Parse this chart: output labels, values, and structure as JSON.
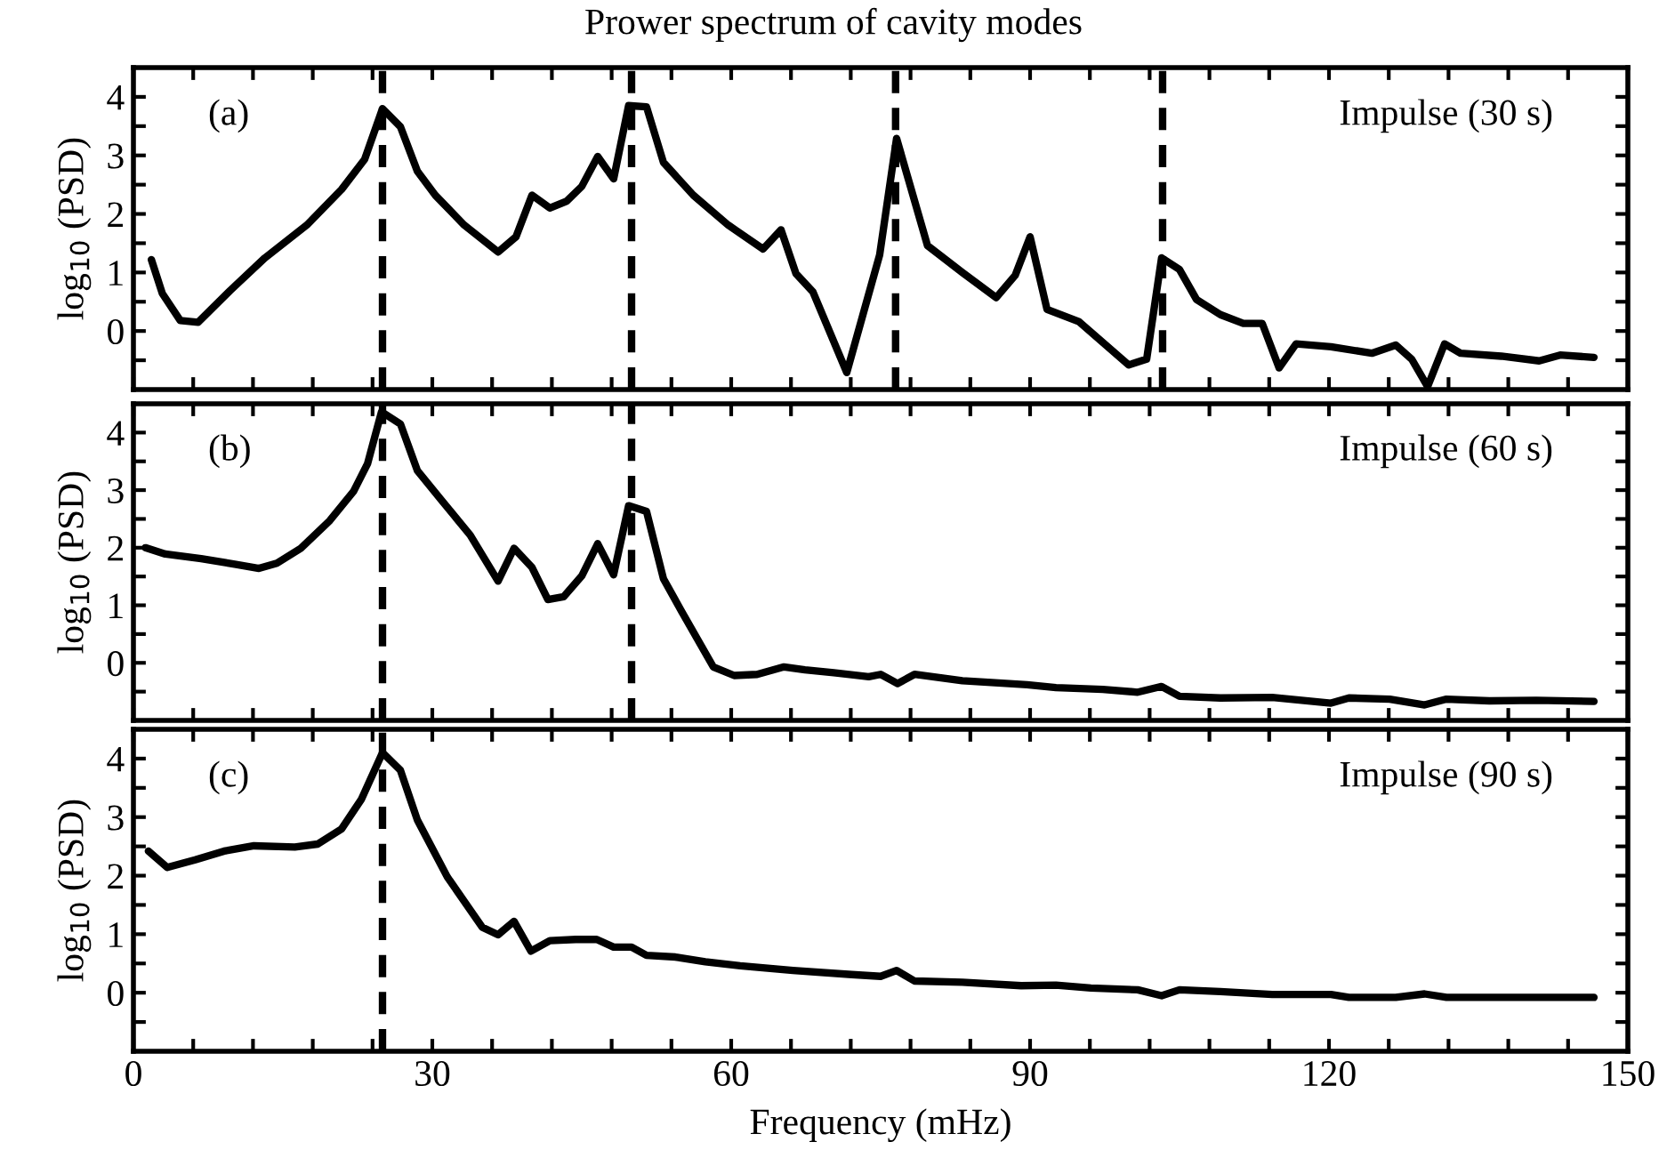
{
  "chart_data": [
    {
      "type": "line",
      "title": "Prower spectrum of cavity modes",
      "ylabel": "log$_{10}$ (PSD)",
      "annotations": [
        "(a)",
        "Impulse (30 s)"
      ],
      "tick_labels": "y",
      "line_style": "solid",
      "xlim": [
        0,
        150
      ],
      "ylim": [
        -1,
        4.5
      ],
      "xticks": [
        0,
        {
          "value": 6,
          "label": null
        },
        {
          "value": 12,
          "label": null
        },
        {
          "value": 18,
          "label": null
        },
        {
          "value": 24,
          "label": null
        },
        30,
        {
          "value": 36,
          "label": null
        },
        {
          "value": 42,
          "label": null
        },
        {
          "value": 48,
          "label": null
        },
        {
          "value": 54,
          "label": null
        },
        60,
        {
          "value": 66,
          "label": null
        },
        {
          "value": 72,
          "label": null
        },
        {
          "value": 78,
          "label": null
        },
        {
          "value": 84,
          "label": null
        },
        90,
        {
          "value": 96,
          "label": null
        },
        {
          "value": 102,
          "label": null
        },
        {
          "value": 108,
          "label": null
        },
        {
          "value": 114,
          "label": null
        },
        120,
        {
          "value": 126,
          "label": null
        },
        {
          "value": 132,
          "label": null
        },
        {
          "value": 138,
          "label": null
        },
        {
          "value": 144,
          "label": null
        },
        150
      ],
      "yticks": [
        {
          "value": -0.5,
          "label": null
        },
        0,
        {
          "value": 0.5,
          "label": null
        },
        1,
        {
          "value": 1.5,
          "label": null
        },
        2,
        {
          "value": 2.5,
          "label": null
        },
        3,
        {
          "value": 3.5,
          "label": null
        },
        4
      ],
      "ref_lines": [
        {
          "axis": "x",
          "value": 25,
          "color": "#000000",
          "line_style": "dashed"
        },
        {
          "axis": "x",
          "value": 50,
          "color": "#000000",
          "line_style": "dashed"
        },
        {
          "axis": "x",
          "value": 76.5,
          "color": "#000000",
          "line_style": "dashed"
        },
        {
          "axis": "x",
          "value": 103.3,
          "color": "#000000",
          "line_style": "dashed"
        }
      ],
      "series": [
        {
          "color": "#000000",
          "x": [
            1.8,
            2.9,
            4.7,
            6.5,
            9.7,
            13.2,
            17.4,
            20.9,
            23.2,
            25.0,
            26.8,
            28.5,
            30.3,
            33.2,
            36.6,
            38.4,
            40.0,
            41.8,
            43.5,
            45.0,
            46.6,
            48.2,
            49.7,
            51.5,
            53.2,
            56.2,
            59.7,
            63.2,
            65.0,
            66.5,
            68.2,
            71.6,
            74.9,
            76.6,
            79.7,
            83.2,
            86.6,
            88.5,
            90.0,
            91.7,
            94.9,
            99.9,
            101.7,
            103.2,
            105.0,
            106.7,
            109.1,
            111.4,
            113.3,
            115.0,
            116.7,
            120.2,
            124.3,
            126.7,
            128.3,
            129.9,
            131.6,
            133.2,
            137.3,
            141.1,
            143.2,
            146.6
          ],
          "values": [
            1.22,
            0.64,
            0.18,
            0.15,
            0.69,
            1.25,
            1.81,
            2.42,
            2.93,
            3.8,
            3.49,
            2.73,
            2.32,
            1.81,
            1.35,
            1.61,
            2.32,
            2.1,
            2.22,
            2.47,
            2.98,
            2.6,
            3.85,
            3.83,
            2.88,
            2.32,
            1.81,
            1.4,
            1.73,
            0.98,
            0.67,
            -0.71,
            1.3,
            3.29,
            1.46,
            1.0,
            0.57,
            0.95,
            1.61,
            0.37,
            0.16,
            -0.58,
            -0.48,
            1.25,
            1.05,
            0.54,
            0.28,
            0.13,
            0.13,
            -0.63,
            -0.22,
            -0.27,
            -0.38,
            -0.24,
            -0.48,
            -0.95,
            -0.22,
            -0.38,
            -0.43,
            -0.51,
            -0.41,
            -0.45
          ]
        }
      ]
    },
    {
      "type": "line",
      "ylabel": "log$_{10}$ (PSD)",
      "annotations": [
        "(b)",
        "Impulse (60 s)"
      ],
      "tick_labels": "y",
      "line_style": "solid",
      "xlim": [
        0,
        150
      ],
      "ylim": [
        -1,
        4.5
      ],
      "xticks": [
        0,
        {
          "value": 6,
          "label": null
        },
        {
          "value": 12,
          "label": null
        },
        {
          "value": 18,
          "label": null
        },
        {
          "value": 24,
          "label": null
        },
        30,
        {
          "value": 36,
          "label": null
        },
        {
          "value": 42,
          "label": null
        },
        {
          "value": 48,
          "label": null
        },
        {
          "value": 54,
          "label": null
        },
        60,
        {
          "value": 66,
          "label": null
        },
        {
          "value": 72,
          "label": null
        },
        {
          "value": 78,
          "label": null
        },
        {
          "value": 84,
          "label": null
        },
        90,
        {
          "value": 96,
          "label": null
        },
        {
          "value": 102,
          "label": null
        },
        {
          "value": 108,
          "label": null
        },
        {
          "value": 114,
          "label": null
        },
        120,
        {
          "value": 126,
          "label": null
        },
        {
          "value": 132,
          "label": null
        },
        {
          "value": 138,
          "label": null
        },
        {
          "value": 144,
          "label": null
        },
        150
      ],
      "yticks": [
        {
          "value": -0.5,
          "label": null
        },
        0,
        {
          "value": 0.5,
          "label": null
        },
        1,
        {
          "value": 1.5,
          "label": null
        },
        2,
        {
          "value": 2.5,
          "label": null
        },
        3,
        {
          "value": 3.5,
          "label": null
        },
        4
      ],
      "ref_lines": [
        {
          "axis": "x",
          "value": 25,
          "color": "#000000",
          "line_style": "dashed"
        },
        {
          "axis": "x",
          "value": 50,
          "color": "#000000",
          "line_style": "dashed"
        }
      ],
      "series": [
        {
          "color": "#000000",
          "x": [
            1.2,
            3.2,
            6.8,
            10.3,
            12.6,
            14.4,
            16.8,
            19.7,
            22.1,
            23.5,
            24.9,
            26.8,
            28.5,
            30.9,
            33.8,
            36.6,
            38.2,
            40.0,
            41.6,
            43.2,
            45.0,
            46.6,
            48.2,
            49.7,
            51.5,
            53.2,
            55.0,
            58.2,
            60.3,
            62.6,
            65.3,
            67.4,
            70.3,
            73.8,
            75.0,
            76.7,
            78.4,
            83.2,
            89.7,
            92.6,
            97.3,
            100.8,
            103.2,
            105.0,
            109.1,
            114.3,
            120.2,
            122.0,
            126.1,
            129.6,
            131.8,
            136.1,
            140.8,
            146.6
          ],
          "values": [
            2.0,
            1.89,
            1.81,
            1.71,
            1.64,
            1.73,
            1.99,
            2.47,
            2.98,
            3.46,
            4.36,
            4.15,
            3.34,
            2.83,
            2.22,
            1.42,
            1.99,
            1.66,
            1.1,
            1.15,
            1.51,
            2.07,
            1.53,
            2.73,
            2.63,
            1.46,
            0.9,
            -0.07,
            -0.22,
            -0.2,
            -0.07,
            -0.12,
            -0.17,
            -0.24,
            -0.2,
            -0.36,
            -0.2,
            -0.31,
            -0.38,
            -0.43,
            -0.46,
            -0.51,
            -0.41,
            -0.58,
            -0.61,
            -0.6,
            -0.7,
            -0.61,
            -0.63,
            -0.73,
            -0.63,
            -0.66,
            -0.65,
            -0.67
          ]
        }
      ]
    },
    {
      "type": "line",
      "ylabel": "log$_{10}$ (PSD)",
      "xlabel": "Frequency (mHz)",
      "annotations": [
        "(c)",
        "Impulse (90 s)"
      ],
      "line_style": "solid",
      "xlim": [
        0,
        150
      ],
      "ylim": [
        -1,
        4.5
      ],
      "xticks": [
        0,
        {
          "value": 6,
          "label": null
        },
        {
          "value": 12,
          "label": null
        },
        {
          "value": 18,
          "label": null
        },
        {
          "value": 24,
          "label": null
        },
        30,
        {
          "value": 36,
          "label": null
        },
        {
          "value": 42,
          "label": null
        },
        {
          "value": 48,
          "label": null
        },
        {
          "value": 54,
          "label": null
        },
        60,
        {
          "value": 66,
          "label": null
        },
        {
          "value": 72,
          "label": null
        },
        {
          "value": 78,
          "label": null
        },
        {
          "value": 84,
          "label": null
        },
        90,
        {
          "value": 96,
          "label": null
        },
        {
          "value": 102,
          "label": null
        },
        {
          "value": 108,
          "label": null
        },
        {
          "value": 114,
          "label": null
        },
        120,
        {
          "value": 126,
          "label": null
        },
        {
          "value": 132,
          "label": null
        },
        {
          "value": 138,
          "label": null
        },
        {
          "value": 144,
          "label": null
        },
        150
      ],
      "yticks": [
        {
          "value": -0.5,
          "label": null
        },
        0,
        {
          "value": 0.5,
          "label": null
        },
        1,
        {
          "value": 1.5,
          "label": null
        },
        2,
        {
          "value": 2.5,
          "label": null
        },
        3,
        {
          "value": 3.5,
          "label": null
        },
        4
      ],
      "ref_lines": [
        {
          "axis": "x",
          "value": 25,
          "color": "#000000",
          "line_style": "dashed"
        }
      ],
      "series": [
        {
          "color": "#000000",
          "x": [
            1.5,
            3.4,
            6.2,
            9.1,
            12.1,
            16.2,
            18.5,
            20.9,
            22.9,
            25.0,
            26.8,
            28.5,
            31.5,
            35.0,
            36.6,
            38.2,
            39.9,
            41.8,
            44.4,
            46.5,
            48.2,
            50.0,
            51.5,
            54.4,
            57.4,
            60.9,
            66.2,
            72.1,
            75.0,
            76.6,
            78.4,
            83.2,
            89.1,
            92.6,
            96.1,
            100.8,
            103.2,
            105.0,
            109.1,
            114.3,
            120.2,
            122.0,
            126.7,
            129.6,
            131.8,
            136.1,
            146.6
          ],
          "values": [
            2.42,
            2.14,
            2.27,
            2.42,
            2.51,
            2.49,
            2.54,
            2.8,
            3.31,
            4.1,
            3.8,
            2.95,
            1.98,
            1.12,
            0.99,
            1.22,
            0.71,
            0.89,
            0.91,
            0.91,
            0.78,
            0.78,
            0.64,
            0.61,
            0.53,
            0.46,
            0.38,
            0.31,
            0.28,
            0.38,
            0.2,
            0.18,
            0.12,
            0.13,
            0.08,
            0.05,
            -0.05,
            0.05,
            0.02,
            -0.03,
            -0.03,
            -0.08,
            -0.08,
            -0.02,
            -0.08,
            -0.08,
            -0.08
          ]
        }
      ]
    }
  ]
}
